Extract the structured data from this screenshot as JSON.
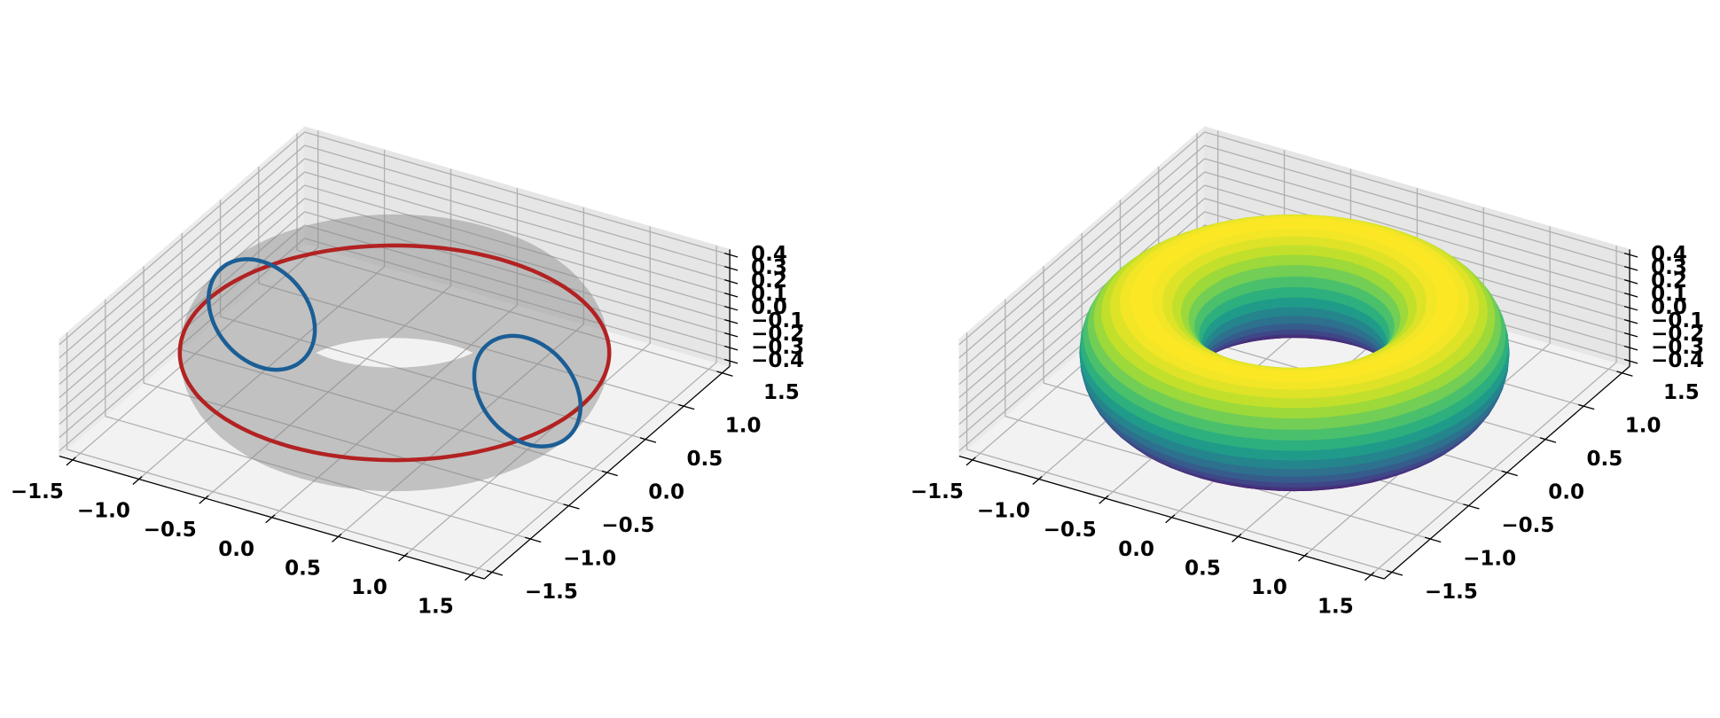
{
  "chart_data": [
    {
      "type": "surface3d",
      "view": {
        "elev": 30,
        "azim": -60
      },
      "xlim": [
        -1.6,
        1.6
      ],
      "ylim": [
        -1.6,
        1.6
      ],
      "zlim": [
        -0.44,
        0.44
      ],
      "xticks": [
        {
          "value": -1.5,
          "label": "−1.5"
        },
        {
          "value": -1,
          "label": "−1.0"
        },
        {
          "value": -0.5,
          "label": "−0.5"
        },
        {
          "value": 0,
          "label": "0.0"
        },
        0.5,
        {
          "value": 1,
          "label": "1.0"
        },
        1.5
      ],
      "yticks": [
        {
          "value": -1.5,
          "label": "−1.5"
        },
        {
          "value": -1,
          "label": "−1.0"
        },
        {
          "value": -0.5,
          "label": "−0.5"
        },
        {
          "value": 0,
          "label": "0.0"
        },
        0.5,
        {
          "value": 1,
          "label": "1.0"
        },
        1.5
      ],
      "zticks": [
        {
          "value": -0.4,
          "label": "−0.4"
        },
        {
          "value": -0.3,
          "label": "−0.3"
        },
        {
          "value": -0.2,
          "label": "−0.2"
        },
        {
          "value": -0.1,
          "label": "−0.1"
        },
        {
          "value": 0,
          "label": "0.0"
        },
        0.1,
        0.2,
        0.3,
        0.4
      ],
      "grid": true,
      "torus": {
        "major_radius": 1,
        "minor_radius": 0.4,
        "color": "#888888",
        "alpha": 0.45
      },
      "equator": {
        "color": "#b22222"
      },
      "meridians": {
        "angles": [
          0,
          180
        ],
        "color": "#1b5e95"
      }
    },
    {
      "type": "surface3d",
      "view": {
        "elev": 30,
        "azim": -60
      },
      "xlim": [
        -1.6,
        1.6
      ],
      "ylim": [
        -1.6,
        1.6
      ],
      "zlim": [
        -0.44,
        0.44
      ],
      "xticks": [
        {
          "value": -1.5,
          "label": "−1.5"
        },
        {
          "value": -1,
          "label": "−1.0"
        },
        {
          "value": -0.5,
          "label": "−0.5"
        },
        {
          "value": 0,
          "label": "0.0"
        },
        0.5,
        {
          "value": 1,
          "label": "1.0"
        },
        1.5
      ],
      "yticks": [
        {
          "value": -1.5,
          "label": "−1.5"
        },
        {
          "value": -1,
          "label": "−1.0"
        },
        {
          "value": -0.5,
          "label": "−0.5"
        },
        {
          "value": 0,
          "label": "0.0"
        },
        0.5,
        {
          "value": 1,
          "label": "1.0"
        },
        1.5
      ],
      "zticks": [
        {
          "value": -0.4,
          "label": "−0.4"
        },
        {
          "value": -0.3,
          "label": "−0.3"
        },
        {
          "value": -0.2,
          "label": "−0.2"
        },
        {
          "value": -0.1,
          "label": "−0.1"
        },
        {
          "value": 0,
          "label": "0.0"
        },
        0.1,
        0.2,
        0.3,
        0.4
      ],
      "grid": true,
      "torus": {
        "major_radius": 1,
        "minor_radius": 0.4,
        "colormap": "viridis"
      }
    }
  ]
}
